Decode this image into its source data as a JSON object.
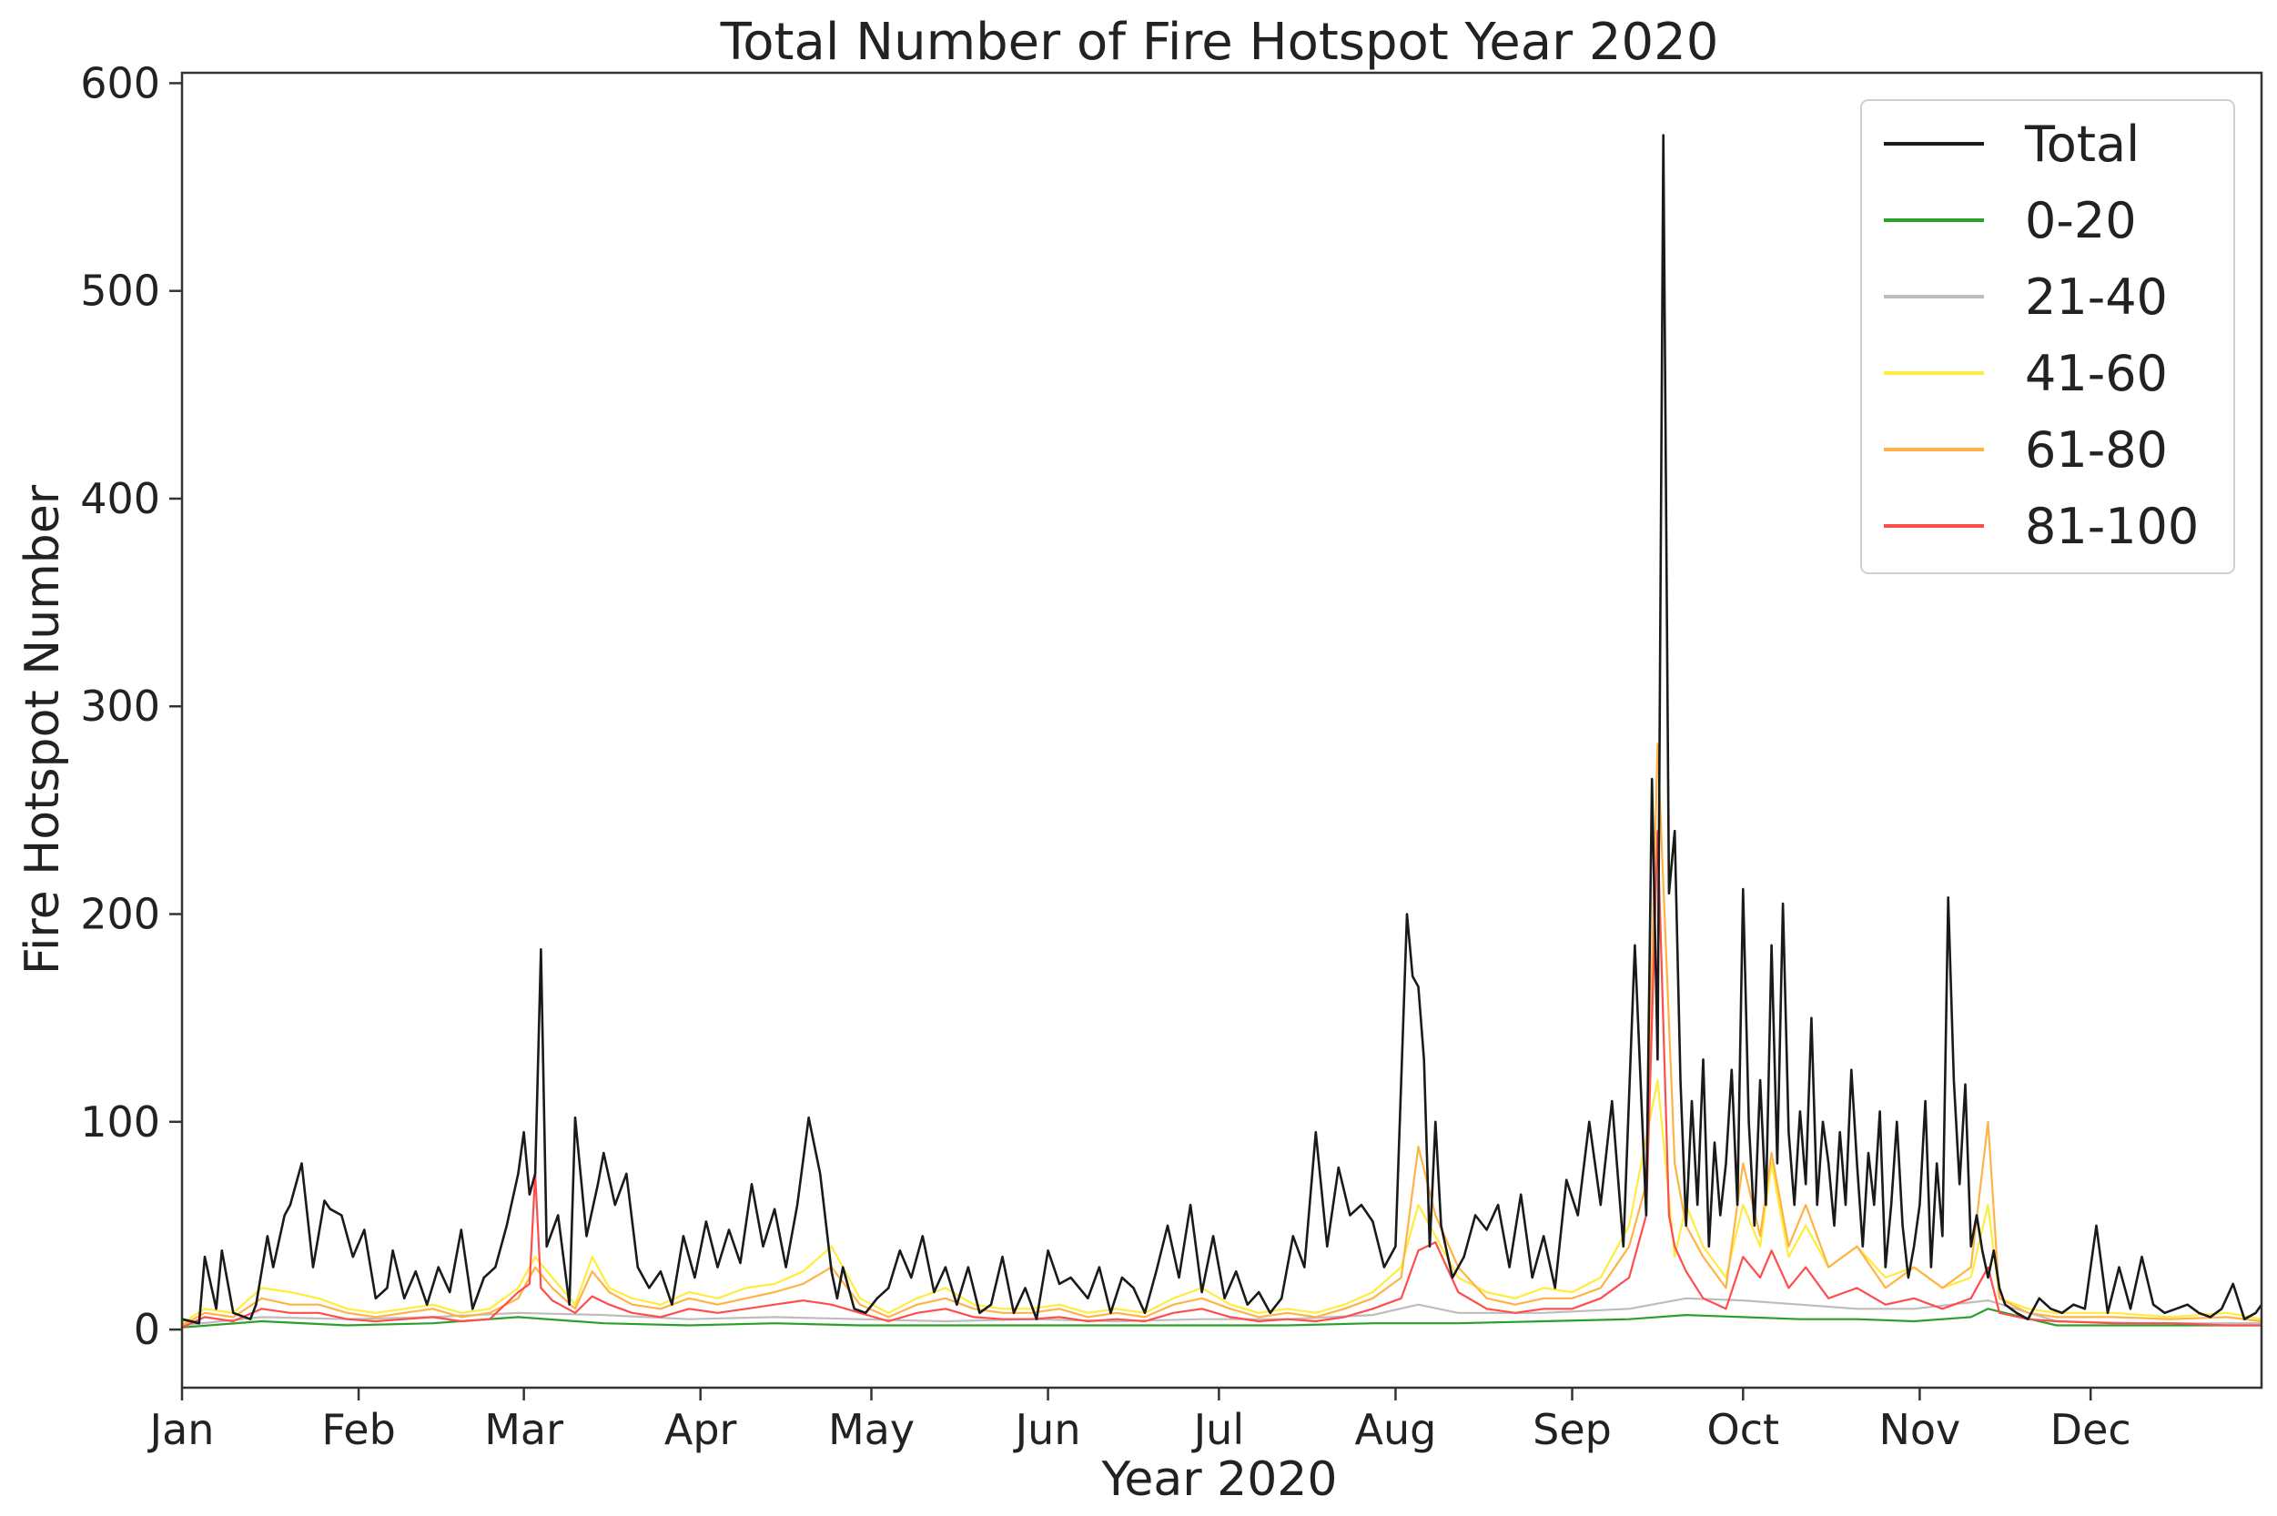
{
  "chart_data": {
    "type": "line",
    "title": "Total Number of Fire Hotspot Year 2020",
    "xlabel": "Year 2020",
    "ylabel": "Fire Hotspot Number",
    "ylim": [
      -28,
      605
    ],
    "xlim": [
      1,
      366
    ],
    "grid": false,
    "legend_position": "top-right",
    "xticks": [
      {
        "label": "Jan",
        "day": 1
      },
      {
        "label": "Feb",
        "day": 32
      },
      {
        "label": "Mar",
        "day": 61
      },
      {
        "label": "Apr",
        "day": 92
      },
      {
        "label": "May",
        "day": 122
      },
      {
        "label": "Jun",
        "day": 153
      },
      {
        "label": "Jul",
        "day": 183
      },
      {
        "label": "Aug",
        "day": 214
      },
      {
        "label": "Sep",
        "day": 245
      },
      {
        "label": "Oct",
        "day": 275
      },
      {
        "label": "Nov",
        "day": 306
      },
      {
        "label": "Dec",
        "day": 336
      }
    ],
    "yticks": [
      {
        "label": "0",
        "value": 0
      },
      {
        "label": "100",
        "value": 100
      },
      {
        "label": "200",
        "value": 200
      },
      {
        "label": "300",
        "value": 300
      },
      {
        "label": "400",
        "value": 400
      },
      {
        "label": "500",
        "value": 500
      },
      {
        "label": "600",
        "value": 600
      }
    ],
    "series": [
      {
        "name": "Total",
        "color": "#1a1a1a",
        "x": [
          1,
          4,
          5,
          7,
          8,
          10,
          13,
          14,
          16,
          17,
          19,
          20,
          22,
          24,
          26,
          27,
          29,
          31,
          33,
          35,
          37,
          38,
          40,
          42,
          44,
          46,
          48,
          50,
          52,
          54,
          56,
          58,
          60,
          61,
          62,
          63,
          64,
          65,
          67,
          69,
          70,
          72,
          74,
          75,
          77,
          79,
          81,
          83,
          85,
          87,
          89,
          91,
          93,
          95,
          97,
          99,
          101,
          103,
          105,
          107,
          109,
          111,
          113,
          115,
          116,
          117,
          119,
          121,
          123,
          125,
          127,
          129,
          131,
          133,
          135,
          137,
          139,
          141,
          143,
          145,
          147,
          149,
          151,
          153,
          155,
          157,
          160,
          162,
          164,
          166,
          168,
          170,
          172,
          174,
          176,
          178,
          180,
          182,
          184,
          186,
          188,
          190,
          192,
          194,
          196,
          198,
          200,
          202,
          204,
          206,
          208,
          210,
          212,
          214,
          216,
          217,
          218,
          219,
          220,
          221,
          222,
          224,
          226,
          228,
          230,
          232,
          234,
          236,
          238,
          240,
          242,
          244,
          246,
          248,
          250,
          252,
          254,
          256,
          258,
          259,
          260,
          261,
          262,
          263,
          264,
          265,
          266,
          267,
          268,
          269,
          270,
          271,
          272,
          273,
          274,
          275,
          276,
          277,
          278,
          279,
          280,
          281,
          282,
          283,
          284,
          285,
          286,
          287,
          288,
          289,
          290,
          291,
          292,
          293,
          294,
          295,
          296,
          297,
          298,
          299,
          300,
          301,
          302,
          303,
          304,
          305,
          306,
          307,
          308,
          309,
          310,
          311,
          312,
          313,
          314,
          315,
          316,
          317,
          318,
          319,
          320,
          321,
          323,
          325,
          327,
          329,
          331,
          333,
          335,
          337,
          339,
          341,
          343,
          345,
          347,
          349,
          351,
          353,
          355,
          357,
          359,
          361,
          363,
          365,
          366
        ],
        "values": [
          5,
          3,
          35,
          10,
          38,
          8,
          5,
          12,
          45,
          30,
          55,
          60,
          80,
          30,
          62,
          58,
          55,
          35,
          48,
          15,
          20,
          38,
          15,
          28,
          12,
          30,
          18,
          48,
          10,
          25,
          30,
          50,
          75,
          95,
          65,
          75,
          183,
          40,
          55,
          12,
          102,
          45,
          70,
          85,
          60,
          75,
          30,
          20,
          28,
          12,
          45,
          25,
          52,
          30,
          48,
          32,
          70,
          40,
          58,
          30,
          60,
          102,
          75,
          28,
          15,
          30,
          10,
          8,
          15,
          20,
          38,
          25,
          45,
          18,
          30,
          12,
          30,
          8,
          12,
          35,
          8,
          20,
          5,
          38,
          22,
          25,
          15,
          30,
          8,
          25,
          20,
          8,
          28,
          50,
          25,
          60,
          18,
          45,
          15,
          28,
          12,
          18,
          8,
          15,
          45,
          30,
          95,
          40,
          78,
          55,
          60,
          52,
          30,
          40,
          200,
          170,
          165,
          130,
          40,
          100,
          50,
          25,
          35,
          55,
          48,
          60,
          30,
          65,
          25,
          45,
          20,
          72,
          55,
          100,
          60,
          110,
          40,
          185,
          55,
          265,
          130,
          575,
          210,
          240,
          120,
          50,
          110,
          60,
          130,
          40,
          90,
          55,
          80,
          125,
          60,
          212,
          100,
          50,
          120,
          60,
          185,
          80,
          205,
          95,
          60,
          105,
          70,
          150,
          60,
          100,
          80,
          50,
          95,
          60,
          125,
          80,
          40,
          85,
          60,
          105,
          30,
          60,
          100,
          50,
          25,
          40,
          60,
          110,
          30,
          80,
          45,
          208,
          120,
          70,
          118,
          40,
          55,
          38,
          25,
          38,
          20,
          12,
          8,
          5,
          15,
          10,
          8,
          12,
          10,
          50,
          8,
          30,
          10,
          35,
          12,
          8,
          10,
          12,
          8,
          6,
          10,
          22,
          5,
          8,
          12
        ]
      },
      {
        "name": "0-20",
        "color": "#2ca02c",
        "x": [
          1,
          15,
          30,
          45,
          60,
          75,
          90,
          105,
          120,
          135,
          150,
          165,
          180,
          195,
          210,
          225,
          240,
          255,
          265,
          275,
          285,
          295,
          305,
          315,
          318,
          330,
          345,
          366
        ],
        "values": [
          1,
          4,
          2,
          3,
          6,
          3,
          2,
          3,
          2,
          2,
          2,
          2,
          2,
          2,
          3,
          3,
          4,
          5,
          7,
          6,
          5,
          5,
          4,
          6,
          10,
          2,
          2,
          2
        ]
      },
      {
        "name": "21-40",
        "color": "#bdbdbd",
        "x": [
          1,
          15,
          30,
          45,
          60,
          75,
          90,
          105,
          120,
          135,
          150,
          165,
          180,
          195,
          210,
          218,
          225,
          240,
          255,
          265,
          275,
          285,
          295,
          305,
          318,
          330,
          345,
          366
        ],
        "values": [
          2,
          6,
          5,
          6,
          8,
          7,
          5,
          6,
          5,
          4,
          5,
          4,
          5,
          5,
          7,
          12,
          8,
          8,
          10,
          15,
          14,
          12,
          10,
          10,
          14,
          4,
          3,
          3
        ]
      },
      {
        "name": "41-60",
        "color": "#ffec3d",
        "x": [
          1,
          5,
          10,
          15,
          20,
          25,
          30,
          35,
          40,
          45,
          50,
          55,
          60,
          63,
          66,
          70,
          73,
          76,
          80,
          85,
          90,
          95,
          100,
          105,
          110,
          115,
          120,
          125,
          130,
          135,
          140,
          145,
          150,
          155,
          160,
          165,
          170,
          175,
          180,
          185,
          190,
          195,
          200,
          205,
          210,
          215,
          218,
          221,
          225,
          230,
          235,
          240,
          245,
          250,
          255,
          260,
          263,
          265,
          268,
          272,
          275,
          278,
          280,
          283,
          286,
          290,
          295,
          300,
          305,
          310,
          315,
          318,
          320,
          325,
          330,
          340,
          350,
          360,
          366
        ],
        "values": [
          3,
          10,
          8,
          20,
          18,
          15,
          10,
          8,
          10,
          12,
          8,
          10,
          20,
          35,
          25,
          12,
          35,
          20,
          15,
          12,
          18,
          15,
          20,
          22,
          28,
          40,
          15,
          8,
          15,
          20,
          12,
          10,
          10,
          12,
          8,
          10,
          8,
          15,
          20,
          12,
          8,
          10,
          8,
          12,
          18,
          30,
          60,
          45,
          25,
          18,
          15,
          20,
          18,
          25,
          50,
          120,
          35,
          60,
          40,
          25,
          60,
          40,
          80,
          35,
          50,
          30,
          40,
          25,
          30,
          20,
          25,
          60,
          15,
          10,
          8,
          8,
          6,
          8,
          5
        ]
      },
      {
        "name": "61-80",
        "color": "#ffb347",
        "x": [
          1,
          5,
          10,
          15,
          20,
          25,
          30,
          35,
          40,
          45,
          50,
          55,
          60,
          63,
          66,
          70,
          73,
          76,
          80,
          85,
          90,
          95,
          100,
          105,
          110,
          115,
          120,
          125,
          130,
          135,
          140,
          145,
          150,
          155,
          160,
          165,
          170,
          175,
          180,
          185,
          190,
          195,
          200,
          205,
          210,
          215,
          218,
          221,
          225,
          230,
          235,
          240,
          245,
          250,
          255,
          258,
          260,
          263,
          265,
          268,
          272,
          275,
          278,
          280,
          283,
          286,
          290,
          295,
          300,
          305,
          310,
          315,
          318,
          320,
          325,
          330,
          340,
          350,
          360,
          366
        ],
        "values": [
          2,
          8,
          6,
          15,
          12,
          12,
          8,
          6,
          8,
          10,
          6,
          8,
          15,
          30,
          20,
          10,
          28,
          18,
          12,
          10,
          15,
          12,
          15,
          18,
          22,
          30,
          12,
          6,
          12,
          15,
          10,
          8,
          8,
          10,
          6,
          8,
          6,
          12,
          15,
          10,
          6,
          8,
          6,
          10,
          15,
          25,
          88,
          55,
          30,
          15,
          12,
          15,
          15,
          20,
          40,
          70,
          282,
          80,
          50,
          35,
          20,
          80,
          45,
          85,
          40,
          60,
          30,
          40,
          20,
          30,
          20,
          30,
          100,
          15,
          8,
          6,
          6,
          5,
          6,
          4
        ]
      },
      {
        "name": "81-100",
        "color": "#ff4d4d",
        "x": [
          1,
          5,
          10,
          15,
          20,
          25,
          30,
          35,
          40,
          45,
          50,
          55,
          60,
          62,
          63,
          64,
          66,
          70,
          73,
          76,
          80,
          85,
          90,
          95,
          100,
          105,
          110,
          115,
          120,
          125,
          130,
          135,
          140,
          145,
          150,
          155,
          160,
          165,
          170,
          175,
          180,
          185,
          190,
          195,
          200,
          205,
          210,
          215,
          218,
          221,
          225,
          230,
          235,
          240,
          245,
          250,
          255,
          258,
          260,
          262,
          263,
          265,
          268,
          272,
          275,
          278,
          280,
          283,
          286,
          290,
          295,
          300,
          305,
          310,
          315,
          318,
          320,
          325,
          330,
          340,
          350,
          360,
          366
        ],
        "values": [
          1,
          6,
          4,
          10,
          8,
          8,
          5,
          4,
          5,
          6,
          4,
          5,
          18,
          22,
          75,
          20,
          14,
          8,
          16,
          12,
          8,
          6,
          10,
          8,
          10,
          12,
          14,
          12,
          8,
          4,
          8,
          10,
          6,
          5,
          5,
          6,
          4,
          5,
          4,
          8,
          10,
          6,
          4,
          5,
          4,
          6,
          10,
          15,
          38,
          42,
          18,
          10,
          8,
          10,
          10,
          15,
          25,
          55,
          240,
          55,
          40,
          28,
          15,
          10,
          35,
          25,
          38,
          20,
          30,
          15,
          20,
          12,
          15,
          10,
          15,
          30,
          8,
          5,
          4,
          3,
          3,
          2,
          2
        ]
      }
    ]
  }
}
